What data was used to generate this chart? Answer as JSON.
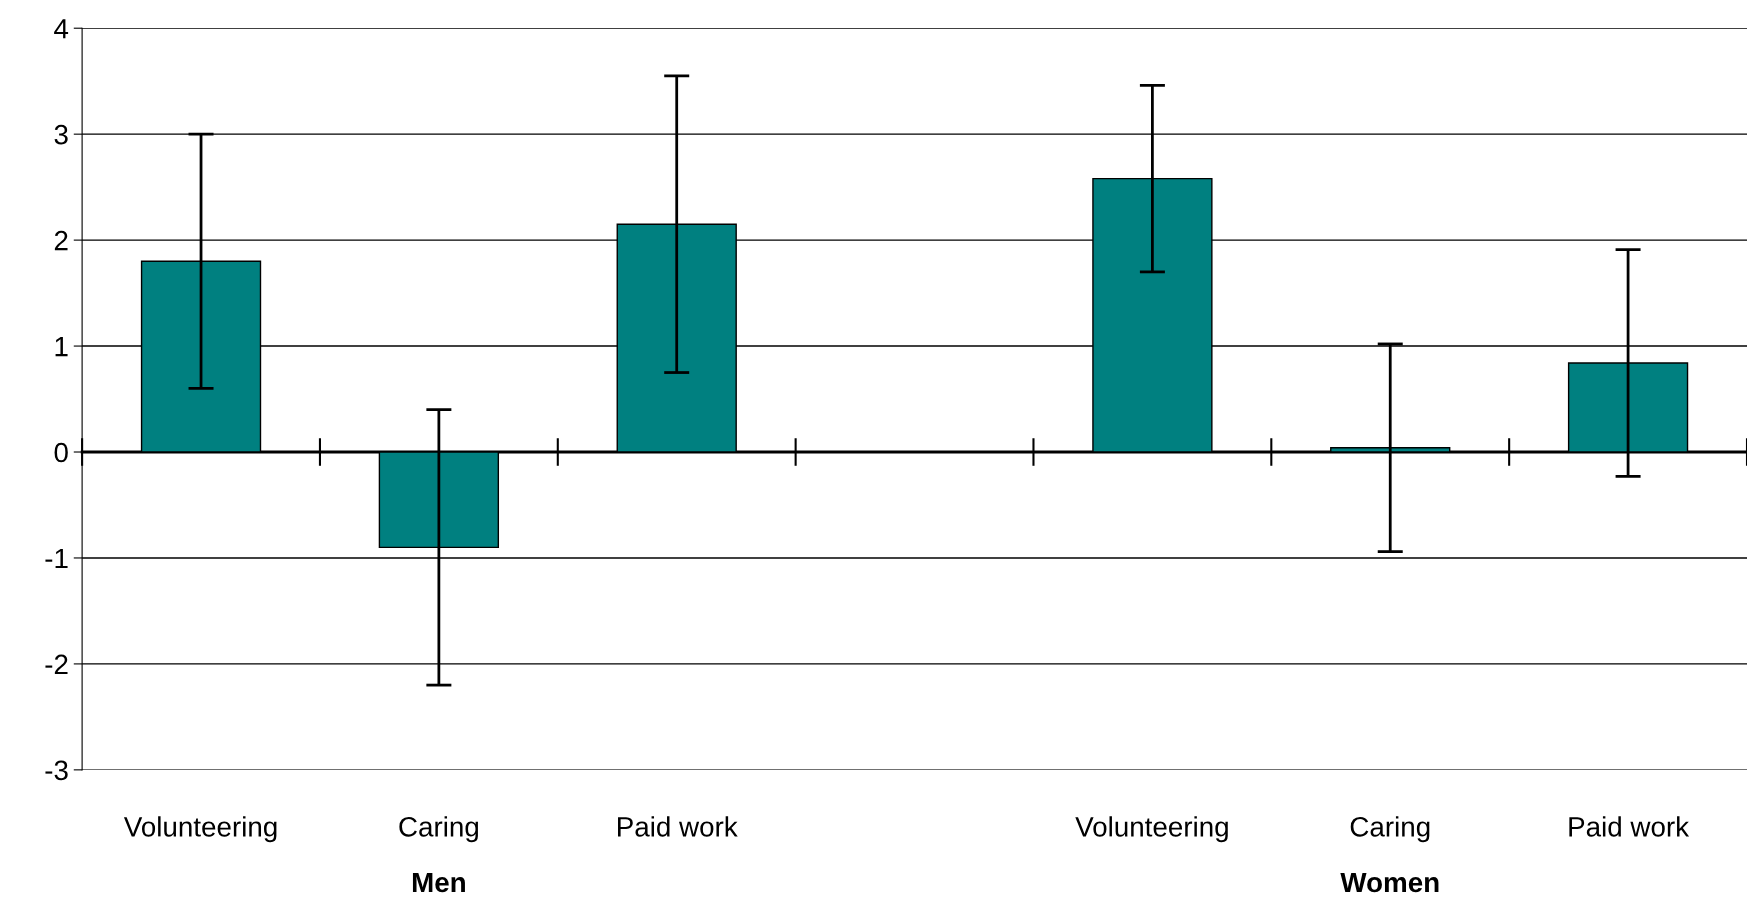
{
  "chart_data": {
    "type": "bar",
    "categories": [
      "Volunteering",
      "Caring",
      "Paid work",
      null,
      "Volunteering",
      "Caring",
      "Paid work"
    ],
    "values": [
      1.8,
      -0.9,
      2.15,
      null,
      2.58,
      0.04,
      0.84
    ],
    "errors": [
      1.2,
      1.3,
      1.4,
      null,
      0.88,
      0.98,
      1.07
    ],
    "color": "#008080",
    "ylim": [
      -3,
      4
    ],
    "yticks": [
      -3,
      -2,
      -1,
      0,
      1,
      2,
      3,
      4
    ],
    "grid": "y",
    "annotations": [
      "Men",
      "Women"
    ]
  }
}
